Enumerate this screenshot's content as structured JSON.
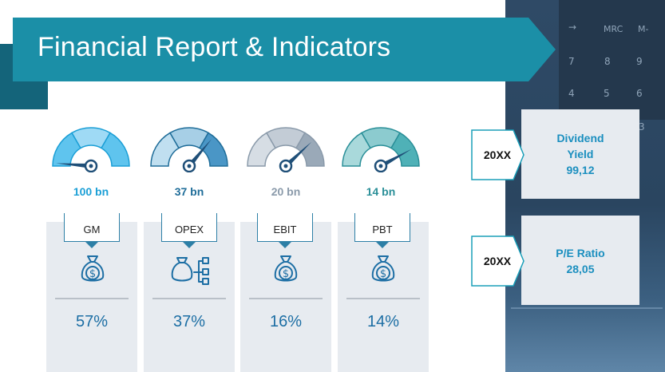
{
  "title": "Financial Report & Indicators",
  "calculator_keys": [
    "→",
    "MRC",
    "M-",
    "7",
    "8",
    "9",
    "4",
    "5",
    "6",
    "3"
  ],
  "gauges": [
    {
      "value_label": "100 bn",
      "level": 0.0,
      "color": "#1b9fd6",
      "seg_colors": [
        "#5fc4ee",
        "#9fdaf5",
        "#5fc4ee"
      ]
    },
    {
      "value_label": "37 bn",
      "level": 0.72,
      "color": "#1f6d99",
      "seg_colors": [
        "#c0dff0",
        "#a7cfe6",
        "#4a96c6"
      ]
    },
    {
      "value_label": "20 bn",
      "level": 0.76,
      "color": "#8a9aaa",
      "seg_colors": [
        "#d6dde4",
        "#c3ccd6",
        "#9aa9b8"
      ]
    },
    {
      "value_label": "14 bn",
      "level": 0.84,
      "color": "#2a8f98",
      "seg_colors": [
        "#a9d9db",
        "#8ccbcf",
        "#4fb1b7"
      ]
    }
  ],
  "cards": [
    {
      "label": "GM",
      "icon": "money-bag-icon",
      "percent": "57%"
    },
    {
      "label": "OPEX",
      "icon": "money-bag-hierarchy-icon",
      "percent": "37%"
    },
    {
      "label": "EBIT",
      "icon": "money-bag-icon",
      "percent": "16%"
    },
    {
      "label": "PBT",
      "icon": "money-bag-icon",
      "percent": "14%"
    }
  ],
  "indicators": [
    {
      "year": "20XX",
      "name": "Dividend",
      "name2": "Yield",
      "value": "99,12"
    },
    {
      "year": "20XX",
      "name": "P/E Ratio",
      "value": "28,05"
    }
  ],
  "colors": {
    "banner": "#1b8fa7",
    "banner_fold": "#14647a",
    "card_bg": "#e7ebf0",
    "accent": "#1c6ea4",
    "indicator_text": "#1b8fbf"
  }
}
